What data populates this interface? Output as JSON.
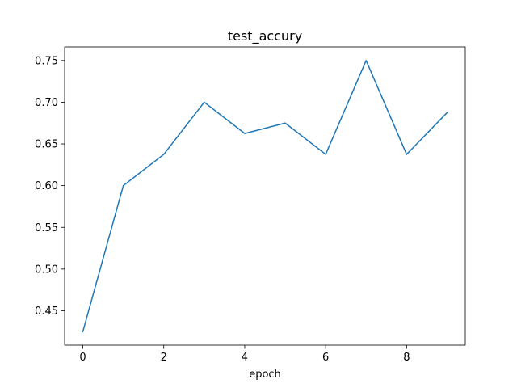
{
  "chart_data": {
    "type": "line",
    "title": "test_accury",
    "xlabel": "epoch",
    "ylabel": "",
    "x": [
      0,
      1,
      2,
      3,
      4,
      5,
      6,
      7,
      8,
      9
    ],
    "series": [
      {
        "values": [
          0.425,
          0.6,
          0.6375,
          0.7,
          0.6625,
          0.675,
          0.6375,
          0.75,
          0.6375,
          0.6875
        ],
        "color": "#1f77b4"
      }
    ],
    "xlim": [
      -0.45,
      9.45
    ],
    "ylim": [
      0.4088,
      0.7663
    ],
    "xticks": [
      0,
      2,
      4,
      6,
      8
    ],
    "yticks": [
      0.45,
      0.5,
      0.55,
      0.6,
      0.65,
      0.7,
      0.75
    ],
    "ytick_labels": [
      "0.45",
      "0.50",
      "0.55",
      "0.60",
      "0.65",
      "0.70",
      "0.75"
    ],
    "grid": false,
    "legend": "none"
  }
}
